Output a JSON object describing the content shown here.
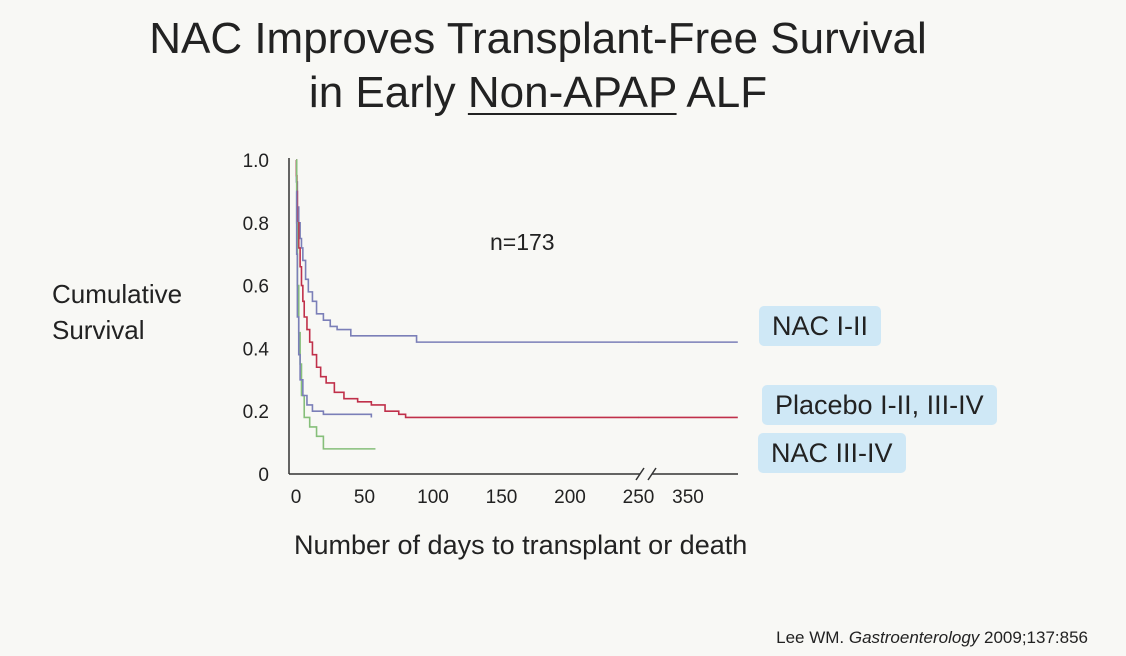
{
  "title": {
    "line1": "NAC Improves Transplant-Free Survival",
    "line2_pre": "in Early ",
    "line2_underlined": "Non-APAP",
    "line2_post": " ALF"
  },
  "annotation": "n=173",
  "citation": {
    "author": "Lee WM. ",
    "journal": "Gastroenterology",
    "rest": " 2009;137:856"
  },
  "colors": {
    "nac_1_2": "#7b7fb8",
    "placebo": "#c0304a",
    "nac_3_4": "#86bf7a",
    "label_bg": "#cfe8f6"
  },
  "chart_data": {
    "type": "line",
    "xlabel": "Number of days to transplant or death",
    "ylabel_lines": [
      "Cumulative",
      "Survival"
    ],
    "ylim": [
      0,
      1.0
    ],
    "yticks": [
      "1.0",
      "0.8",
      "0.6",
      "0.4",
      "0.2",
      "0"
    ],
    "xticks": [
      "0",
      "50",
      "100",
      "150",
      "200",
      "250",
      "350"
    ],
    "axis_break_between": [
      250,
      350
    ],
    "grid": false,
    "series": [
      {
        "name": "NAC I-II",
        "step_x": [
          0,
          0.3,
          1,
          2,
          3,
          4,
          5,
          7,
          9,
          12,
          15,
          20,
          25,
          30,
          40,
          50,
          70,
          88,
          250
        ],
        "step_y": [
          1.0,
          0.93,
          0.85,
          0.8,
          0.75,
          0.72,
          0.68,
          0.62,
          0.58,
          0.55,
          0.51,
          0.49,
          0.47,
          0.46,
          0.44,
          0.44,
          0.44,
          0.42,
          0.42
        ],
        "after_break": [
          [
            290,
            0.42
          ],
          [
            350,
            0.42
          ],
          [
            410,
            0.42
          ]
        ]
      },
      {
        "name": "Placebo I-II, III-IV",
        "step_x": [
          0,
          0.3,
          0.7,
          1,
          2,
          3,
          4,
          5,
          6,
          8,
          10,
          12,
          15,
          18,
          22,
          28,
          35,
          45,
          55,
          65,
          75,
          80,
          90,
          250
        ],
        "step_y": [
          1.0,
          0.95,
          0.9,
          0.8,
          0.72,
          0.66,
          0.6,
          0.55,
          0.5,
          0.46,
          0.42,
          0.38,
          0.34,
          0.31,
          0.29,
          0.26,
          0.24,
          0.23,
          0.22,
          0.2,
          0.19,
          0.18,
          0.18,
          0.18
        ],
        "after_break": [
          [
            290,
            0.18
          ],
          [
            350,
            0.18
          ],
          [
            410,
            0.18
          ]
        ]
      },
      {
        "name": "NAC III-IV",
        "step_x": [
          0,
          0.5,
          1,
          2,
          3,
          4,
          6,
          10,
          15,
          20,
          58
        ],
        "step_y": [
          1.0,
          0.8,
          0.6,
          0.45,
          0.35,
          0.25,
          0.18,
          0.15,
          0.12,
          0.08,
          0.08
        ],
        "after_break": []
      },
      {
        "name": "",
        "step_x": [
          0,
          0.5,
          1,
          2,
          3,
          5,
          8,
          12,
          20,
          55
        ],
        "step_y": [
          0.9,
          0.7,
          0.5,
          0.38,
          0.3,
          0.25,
          0.22,
          0.2,
          0.19,
          0.18
        ],
        "after_break": [],
        "note_color_key": "nac_1_2"
      }
    ]
  }
}
